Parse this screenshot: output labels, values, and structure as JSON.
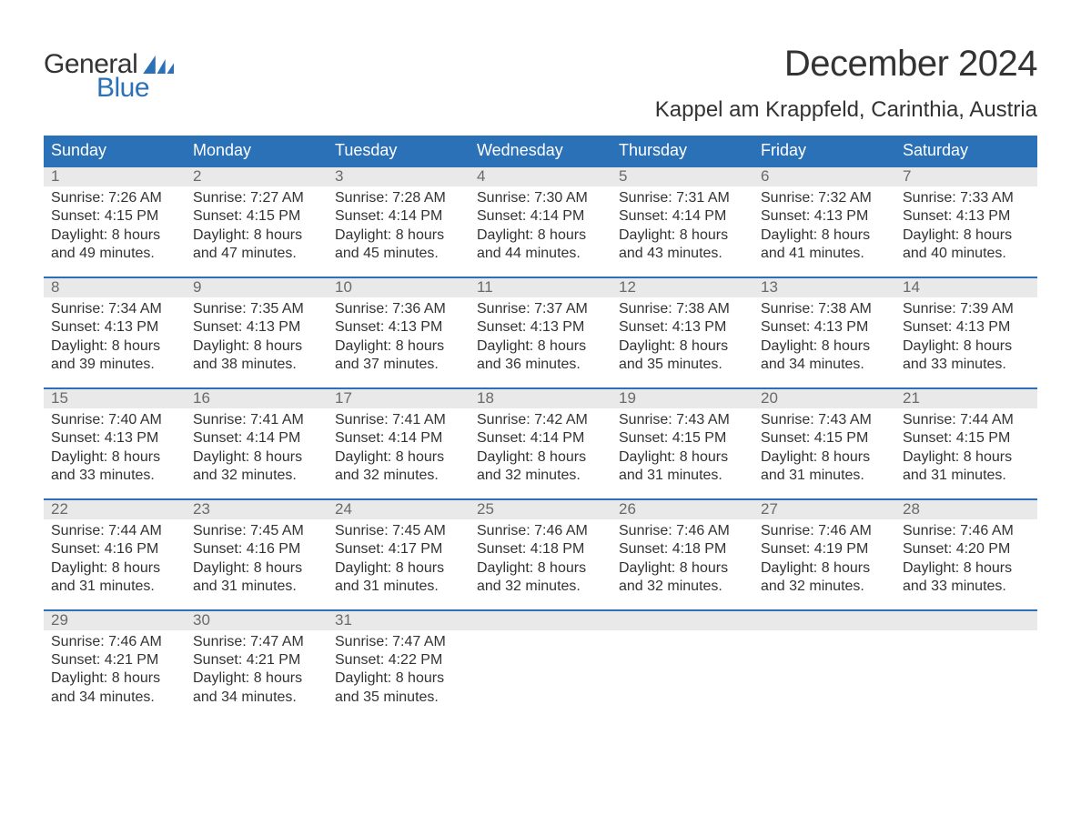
{
  "logo": {
    "text1": "General",
    "text2": "Blue"
  },
  "title": "December 2024",
  "location": "Kappel am Krappfeld, Carinthia, Austria",
  "colors": {
    "header_bg": "#2b71b8",
    "header_text": "#ffffff",
    "daynum_bg": "#e9e9e9",
    "daynum_text": "#6a6a6a",
    "body_text": "#333333",
    "week_border": "#2b71b8",
    "page_bg": "#ffffff"
  },
  "typography": {
    "title_fontsize": 40,
    "location_fontsize": 24,
    "header_fontsize": 18,
    "daynum_fontsize": 17,
    "detail_fontsize": 16
  },
  "layout": {
    "columns": 7,
    "rows": 5
  },
  "weekdays": [
    "Sunday",
    "Monday",
    "Tuesday",
    "Wednesday",
    "Thursday",
    "Friday",
    "Saturday"
  ],
  "weeks": [
    [
      {
        "day": "1",
        "sunrise": "Sunrise: 7:26 AM",
        "sunset": "Sunset: 4:15 PM",
        "dl1": "Daylight: 8 hours",
        "dl2": "and 49 minutes."
      },
      {
        "day": "2",
        "sunrise": "Sunrise: 7:27 AM",
        "sunset": "Sunset: 4:15 PM",
        "dl1": "Daylight: 8 hours",
        "dl2": "and 47 minutes."
      },
      {
        "day": "3",
        "sunrise": "Sunrise: 7:28 AM",
        "sunset": "Sunset: 4:14 PM",
        "dl1": "Daylight: 8 hours",
        "dl2": "and 45 minutes."
      },
      {
        "day": "4",
        "sunrise": "Sunrise: 7:30 AM",
        "sunset": "Sunset: 4:14 PM",
        "dl1": "Daylight: 8 hours",
        "dl2": "and 44 minutes."
      },
      {
        "day": "5",
        "sunrise": "Sunrise: 7:31 AM",
        "sunset": "Sunset: 4:14 PM",
        "dl1": "Daylight: 8 hours",
        "dl2": "and 43 minutes."
      },
      {
        "day": "6",
        "sunrise": "Sunrise: 7:32 AM",
        "sunset": "Sunset: 4:13 PM",
        "dl1": "Daylight: 8 hours",
        "dl2": "and 41 minutes."
      },
      {
        "day": "7",
        "sunrise": "Sunrise: 7:33 AM",
        "sunset": "Sunset: 4:13 PM",
        "dl1": "Daylight: 8 hours",
        "dl2": "and 40 minutes."
      }
    ],
    [
      {
        "day": "8",
        "sunrise": "Sunrise: 7:34 AM",
        "sunset": "Sunset: 4:13 PM",
        "dl1": "Daylight: 8 hours",
        "dl2": "and 39 minutes."
      },
      {
        "day": "9",
        "sunrise": "Sunrise: 7:35 AM",
        "sunset": "Sunset: 4:13 PM",
        "dl1": "Daylight: 8 hours",
        "dl2": "and 38 minutes."
      },
      {
        "day": "10",
        "sunrise": "Sunrise: 7:36 AM",
        "sunset": "Sunset: 4:13 PM",
        "dl1": "Daylight: 8 hours",
        "dl2": "and 37 minutes."
      },
      {
        "day": "11",
        "sunrise": "Sunrise: 7:37 AM",
        "sunset": "Sunset: 4:13 PM",
        "dl1": "Daylight: 8 hours",
        "dl2": "and 36 minutes."
      },
      {
        "day": "12",
        "sunrise": "Sunrise: 7:38 AM",
        "sunset": "Sunset: 4:13 PM",
        "dl1": "Daylight: 8 hours",
        "dl2": "and 35 minutes."
      },
      {
        "day": "13",
        "sunrise": "Sunrise: 7:38 AM",
        "sunset": "Sunset: 4:13 PM",
        "dl1": "Daylight: 8 hours",
        "dl2": "and 34 minutes."
      },
      {
        "day": "14",
        "sunrise": "Sunrise: 7:39 AM",
        "sunset": "Sunset: 4:13 PM",
        "dl1": "Daylight: 8 hours",
        "dl2": "and 33 minutes."
      }
    ],
    [
      {
        "day": "15",
        "sunrise": "Sunrise: 7:40 AM",
        "sunset": "Sunset: 4:13 PM",
        "dl1": "Daylight: 8 hours",
        "dl2": "and 33 minutes."
      },
      {
        "day": "16",
        "sunrise": "Sunrise: 7:41 AM",
        "sunset": "Sunset: 4:14 PM",
        "dl1": "Daylight: 8 hours",
        "dl2": "and 32 minutes."
      },
      {
        "day": "17",
        "sunrise": "Sunrise: 7:41 AM",
        "sunset": "Sunset: 4:14 PM",
        "dl1": "Daylight: 8 hours",
        "dl2": "and 32 minutes."
      },
      {
        "day": "18",
        "sunrise": "Sunrise: 7:42 AM",
        "sunset": "Sunset: 4:14 PM",
        "dl1": "Daylight: 8 hours",
        "dl2": "and 32 minutes."
      },
      {
        "day": "19",
        "sunrise": "Sunrise: 7:43 AM",
        "sunset": "Sunset: 4:15 PM",
        "dl1": "Daylight: 8 hours",
        "dl2": "and 31 minutes."
      },
      {
        "day": "20",
        "sunrise": "Sunrise: 7:43 AM",
        "sunset": "Sunset: 4:15 PM",
        "dl1": "Daylight: 8 hours",
        "dl2": "and 31 minutes."
      },
      {
        "day": "21",
        "sunrise": "Sunrise: 7:44 AM",
        "sunset": "Sunset: 4:15 PM",
        "dl1": "Daylight: 8 hours",
        "dl2": "and 31 minutes."
      }
    ],
    [
      {
        "day": "22",
        "sunrise": "Sunrise: 7:44 AM",
        "sunset": "Sunset: 4:16 PM",
        "dl1": "Daylight: 8 hours",
        "dl2": "and 31 minutes."
      },
      {
        "day": "23",
        "sunrise": "Sunrise: 7:45 AM",
        "sunset": "Sunset: 4:16 PM",
        "dl1": "Daylight: 8 hours",
        "dl2": "and 31 minutes."
      },
      {
        "day": "24",
        "sunrise": "Sunrise: 7:45 AM",
        "sunset": "Sunset: 4:17 PM",
        "dl1": "Daylight: 8 hours",
        "dl2": "and 31 minutes."
      },
      {
        "day": "25",
        "sunrise": "Sunrise: 7:46 AM",
        "sunset": "Sunset: 4:18 PM",
        "dl1": "Daylight: 8 hours",
        "dl2": "and 32 minutes."
      },
      {
        "day": "26",
        "sunrise": "Sunrise: 7:46 AM",
        "sunset": "Sunset: 4:18 PM",
        "dl1": "Daylight: 8 hours",
        "dl2": "and 32 minutes."
      },
      {
        "day": "27",
        "sunrise": "Sunrise: 7:46 AM",
        "sunset": "Sunset: 4:19 PM",
        "dl1": "Daylight: 8 hours",
        "dl2": "and 32 minutes."
      },
      {
        "day": "28",
        "sunrise": "Sunrise: 7:46 AM",
        "sunset": "Sunset: 4:20 PM",
        "dl1": "Daylight: 8 hours",
        "dl2": "and 33 minutes."
      }
    ],
    [
      {
        "day": "29",
        "sunrise": "Sunrise: 7:46 AM",
        "sunset": "Sunset: 4:21 PM",
        "dl1": "Daylight: 8 hours",
        "dl2": "and 34 minutes."
      },
      {
        "day": "30",
        "sunrise": "Sunrise: 7:47 AM",
        "sunset": "Sunset: 4:21 PM",
        "dl1": "Daylight: 8 hours",
        "dl2": "and 34 minutes."
      },
      {
        "day": "31",
        "sunrise": "Sunrise: 7:47 AM",
        "sunset": "Sunset: 4:22 PM",
        "dl1": "Daylight: 8 hours",
        "dl2": "and 35 minutes."
      },
      null,
      null,
      null,
      null
    ]
  ]
}
